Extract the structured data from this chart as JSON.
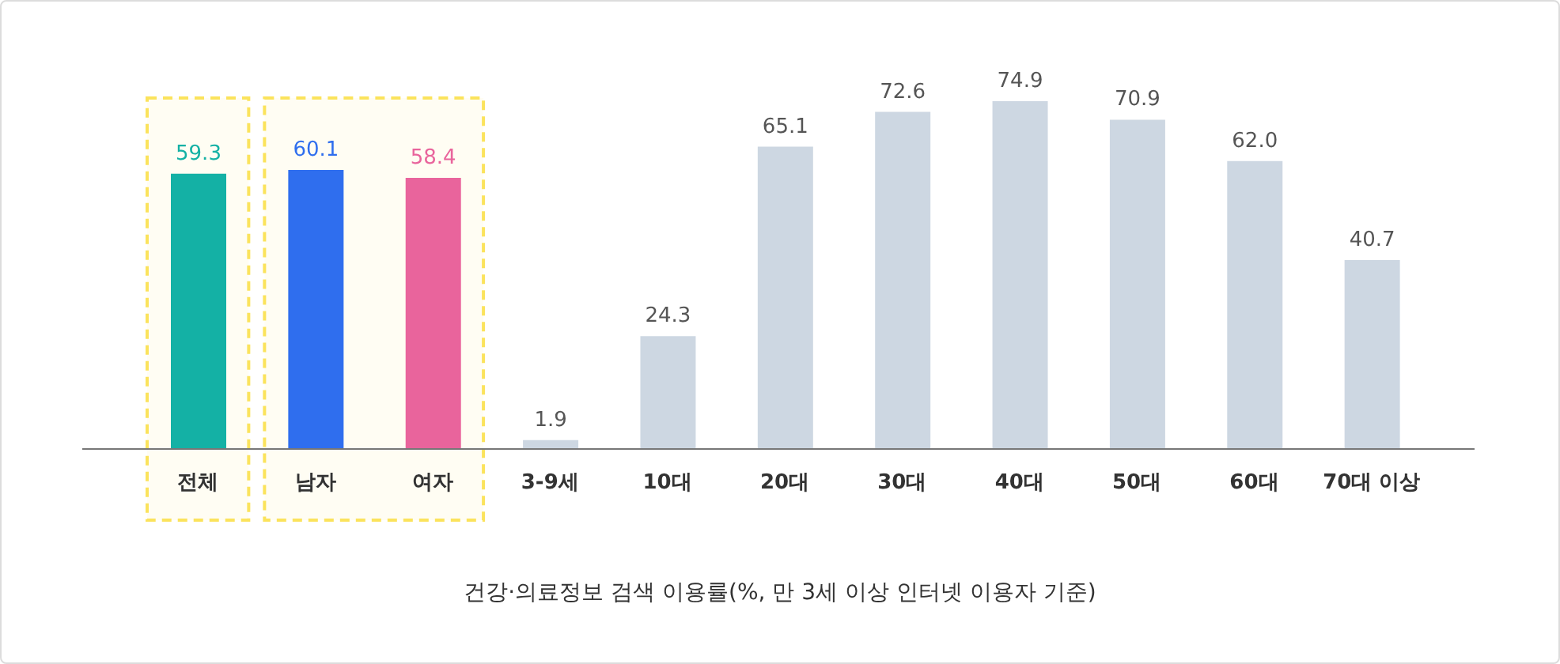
{
  "chart_data": {
    "type": "bar",
    "title": "건강·의료정보 검색 이용률(%, 만 3세 이상 인터넷 이용자 기준)",
    "categories": [
      "전체",
      "남자",
      "여자",
      "3-9세",
      "10대",
      "20대",
      "30대",
      "40대",
      "50대",
      "60대",
      "70대 이상"
    ],
    "values": [
      59.3,
      60.1,
      58.4,
      1.9,
      24.3,
      65.1,
      72.6,
      74.9,
      70.9,
      62.0,
      40.7
    ],
    "value_labels": [
      "59.3",
      "60.1",
      "58.4",
      "1.9",
      "24.3",
      "65.1",
      "72.6",
      "74.9",
      "70.9",
      "62.0",
      "40.7"
    ],
    "colors": [
      "#14b1a5",
      "#2f6eee",
      "#e9649c",
      "#cdd7e2",
      "#cdd7e2",
      "#cdd7e2",
      "#cdd7e2",
      "#cdd7e2",
      "#cdd7e2",
      "#cdd7e2",
      "#cdd7e2"
    ],
    "bands": [
      {
        "axis": "x",
        "from": "전체",
        "to": "전체",
        "color": "#fbe35c"
      },
      {
        "axis": "x",
        "from": "남자",
        "to": "여자",
        "color": "#fbe35c"
      }
    ]
  }
}
